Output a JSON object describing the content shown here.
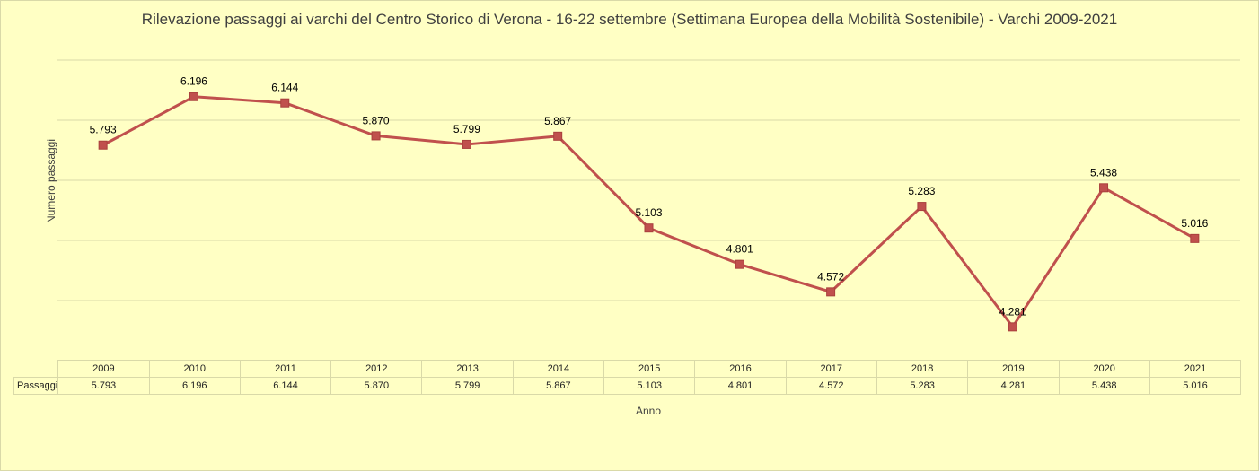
{
  "chart_data": {
    "type": "line",
    "title": "Rilevazione passaggi ai varchi del Centro Storico di Verona - 16-22 settembre (Settimana Europea della Mobilità Sostenibile) - Varchi 2009-2021",
    "xlabel": "Anno",
    "ylabel": "Numero passaggi",
    "categories": [
      "2009",
      "2010",
      "2011",
      "2012",
      "2013",
      "2014",
      "2015",
      "2016",
      "2017",
      "2018",
      "2019",
      "2020",
      "2021"
    ],
    "series": [
      {
        "name": "Passaggi",
        "values": [
          5793,
          6196,
          6144,
          5870,
          5799,
          5867,
          5103,
          4801,
          4572,
          5283,
          4281,
          5438,
          5016
        ],
        "labels": [
          "5.793",
          "6.196",
          "6.144",
          "5.870",
          "5.799",
          "5.867",
          "5.103",
          "4.801",
          "4.572",
          "5.283",
          "4.281",
          "5.438",
          "5.016"
        ],
        "color": "#c0504d"
      }
    ],
    "ylim": [
      4000,
      6500
    ],
    "grid": true,
    "data_table": true,
    "axis_tick_labels_shown": false
  }
}
